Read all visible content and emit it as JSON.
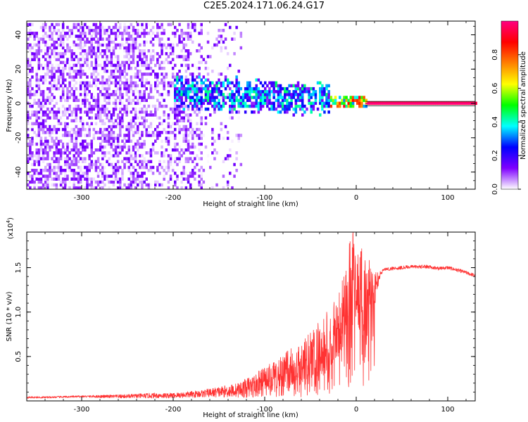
{
  "title": "C2E5.2024.171.06.24.G17",
  "chart_data": [
    {
      "type": "heatmap",
      "xlabel": "Height of straight line (km)",
      "ylabel": "Frequency (Hz)",
      "xlim": [
        -360,
        130
      ],
      "ylim": [
        -50,
        48
      ],
      "xticks": [
        -300,
        -200,
        -100,
        0,
        100
      ],
      "yticks": [
        -40,
        -20,
        0,
        20,
        40
      ],
      "grid": false,
      "colorbar": {
        "label": "Normalized spectral amplitude",
        "range": [
          0.0,
          1.0
        ],
        "ticks": [
          0.0,
          0.2,
          0.4,
          0.6,
          0.8
        ],
        "colormap": [
          "#ffffff",
          "#7f00ff",
          "#0000ff",
          "#00ffff",
          "#00ff00",
          "#ffff00",
          "#ff8000",
          "#ff0000",
          "#ff0080"
        ]
      },
      "regions": [
        {
          "x_range": [
            -360,
            -125
          ],
          "freq_range": [
            -50,
            48
          ],
          "amplitude_range": [
            0.0,
            0.15
          ],
          "description": "diffuse noise"
        },
        {
          "x_range": [
            -200,
            -30
          ],
          "freq_center": 3,
          "freq_halfwidth": 8,
          "amplitude_range": [
            0.1,
            0.45
          ]
        },
        {
          "x_range": [
            -30,
            10
          ],
          "freq_center": 0,
          "freq_halfwidth": 3,
          "amplitude_range": [
            0.3,
            0.9
          ]
        },
        {
          "x_range": [
            10,
            130
          ],
          "freq_center": 0,
          "freq_halfwidth": 1,
          "amplitude_range": [
            0.9,
            1.0
          ]
        }
      ]
    },
    {
      "type": "line",
      "xlabel": "Height of straight line (km)",
      "ylabel": "SNR (10 * v/v)",
      "y_scale_label": "(x10",
      "y_scale_exp": "4",
      "y_scale_suffix": ")",
      "xlim": [
        -360,
        130
      ],
      "ylim": [
        0,
        1.9
      ],
      "xticks": [
        -300,
        -200,
        -100,
        0,
        100
      ],
      "yticks": [
        0.5,
        1.0,
        1.5
      ],
      "grid": false,
      "series": [
        {
          "color": "#ff3333",
          "x": [
            -360,
            -340,
            -300,
            -260,
            -220,
            -200,
            -170,
            -150,
            -130,
            -110,
            -95,
            -80,
            -70,
            -60,
            -50,
            -40,
            -30,
            -20,
            -15,
            -10,
            -6,
            -3,
            0,
            5,
            10,
            15,
            20,
            25,
            30,
            40,
            60,
            80,
            90,
            100,
            115,
            130
          ],
          "y": [
            0.04,
            0.04,
            0.05,
            0.05,
            0.06,
            0.06,
            0.08,
            0.1,
            0.12,
            0.17,
            0.25,
            0.32,
            0.36,
            0.42,
            0.47,
            0.58,
            0.68,
            0.82,
            0.97,
            1.12,
            1.4,
            1.7,
            1.2,
            1.25,
            1.15,
            1.3,
            1.25,
            1.4,
            1.48,
            1.49,
            1.51,
            1.51,
            1.49,
            1.5,
            1.46,
            1.41
          ],
          "noise_amplitude": [
            0.01,
            0.01,
            0.01,
            0.02,
            0.03,
            0.03,
            0.04,
            0.06,
            0.08,
            0.14,
            0.18,
            0.2,
            0.25,
            0.25,
            0.3,
            0.32,
            0.35,
            0.35,
            0.4,
            0.45,
            0.5,
            0.4,
            0.45,
            0.5,
            0.45,
            0.3,
            0.2,
            0.05,
            0.02,
            0.02,
            0.02,
            0.02,
            0.02,
            0.02,
            0.02,
            0.02
          ]
        }
      ]
    }
  ]
}
